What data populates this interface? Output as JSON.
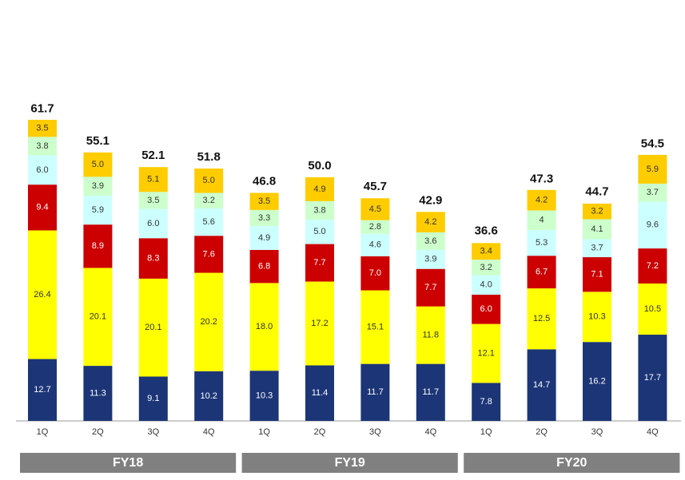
{
  "chart_data": {
    "type": "stacked_bar",
    "categories": [
      "1Q",
      "2Q",
      "3Q",
      "4Q",
      "1Q",
      "2Q",
      "3Q",
      "4Q",
      "1Q",
      "2Q",
      "3Q",
      "4Q"
    ],
    "groups": [
      "FY18",
      "FY19",
      "FY20"
    ],
    "totals": [
      61.7,
      55.1,
      52.1,
      51.8,
      46.8,
      50.0,
      45.7,
      42.9,
      36.6,
      47.3,
      44.7,
      54.5
    ],
    "total_labels": [
      "61.7",
      "55.1",
      "52.1",
      "51.8",
      "46.8",
      "50.0",
      "45.7",
      "42.9",
      "36.6",
      "47.3",
      "44.7",
      "54.5"
    ],
    "series": [
      {
        "color": "#1c3577",
        "label_color": "#ffffff",
        "values": [
          12.7,
          11.3,
          9.1,
          10.2,
          10.3,
          11.4,
          11.7,
          11.7,
          7.8,
          14.7,
          16.2,
          17.7
        ]
      },
      {
        "color": "#ffff00",
        "label_color": "#333333",
        "values": [
          26.4,
          20.1,
          20.1,
          20.2,
          18.0,
          17.2,
          15.1,
          11.8,
          12.1,
          12.5,
          10.3,
          10.5
        ],
        "value_labels": [
          "26.4",
          "20.1",
          "20.1",
          "20.2",
          "18.0",
          "17.2",
          "15.1",
          "11.8",
          "12.1",
          "12.5",
          "10.3",
          "10.5"
        ]
      },
      {
        "color": "#cc0000",
        "label_color": "#ffffff",
        "values": [
          9.4,
          8.9,
          8.3,
          7.6,
          6.8,
          7.7,
          7.0,
          7.7,
          6.0,
          6.7,
          7.1,
          7.2
        ],
        "value_labels": [
          "9.4",
          "8.9",
          "8.3",
          "7.6",
          "6.8",
          "7.7",
          "7.0",
          "7.7",
          "6.0",
          "6.7",
          "7.1",
          "7.2"
        ]
      },
      {
        "color": "#ccffff",
        "label_color": "#333333",
        "values": [
          6.0,
          5.9,
          6.0,
          5.6,
          4.9,
          5.0,
          4.6,
          3.9,
          4.0,
          5.3,
          3.7,
          9.6
        ],
        "value_labels": [
          "6.0",
          "5.9",
          "6.0",
          "5.6",
          "4.9",
          "5.0",
          "4.6",
          "3.9",
          "4.0",
          "5.3",
          "3.7",
          "9.6"
        ]
      },
      {
        "color": "#ccffcc",
        "label_color": "#333333",
        "values": [
          3.8,
          3.9,
          3.5,
          3.2,
          3.3,
          3.8,
          2.8,
          3.6,
          3.2,
          4.0,
          4.1,
          3.7
        ]
      },
      {
        "color": "#ffcc00",
        "label_color": "#333333",
        "values": [
          3.5,
          5.0,
          5.1,
          5.0,
          3.5,
          4.9,
          4.5,
          4.2,
          3.4,
          4.2,
          3.2,
          5.9
        ],
        "value_labels": [
          "3.5",
          "5.0",
          "5.1",
          "5.0",
          "3.5",
          "4.9",
          "4.5",
          "4.2",
          "3.4",
          "4.2",
          "3.2",
          "5.9"
        ]
      }
    ]
  }
}
